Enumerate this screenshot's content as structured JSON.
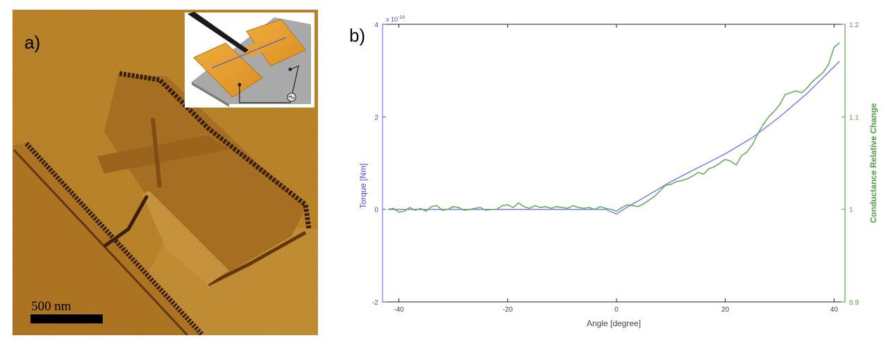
{
  "figure": {
    "panel_a": {
      "label": "a)",
      "scale_bar_label": "500 nm"
    },
    "panel_b": {
      "label": "b)"
    }
  },
  "colors": {
    "background": "#ffffff",
    "image_base": "#c78f2f",
    "image_dark": "#4a2a10",
    "torque_blue": "#7c7cf2",
    "conductance_green": "#5aaa4e",
    "axis_blue": "#4a4ad8",
    "axis_green": "#4fa043"
  },
  "chart_data": {
    "type": "line",
    "xlabel": "Angle [degree]",
    "ylabel_left": "Torque [Nm]",
    "ylabel_right": "Conductance Relative Change",
    "exponent_label": "x 10",
    "exponent_power": "-14",
    "xlim": [
      -43,
      42
    ],
    "ylim_left": [
      -2,
      4
    ],
    "ylim_right": [
      0.9,
      1.2
    ],
    "x_ticks": [
      -40,
      -20,
      0,
      20,
      40
    ],
    "x_tick_labels": [
      "-40",
      "-20",
      "0",
      "20",
      "40"
    ],
    "y_ticks_left": [
      -2,
      0,
      2,
      4
    ],
    "y_tick_labels_left": [
      "-2",
      "0",
      "2",
      "4"
    ],
    "y_ticks_right": [
      0.9,
      1,
      1.1,
      1.2
    ],
    "y_tick_labels_right": [
      "0.9",
      "1",
      "1.1",
      "1.2"
    ],
    "grid": false,
    "series": [
      {
        "axis": "left",
        "color": "#7c7cf2",
        "x": [
          -42,
          -30,
          -20,
          -10,
          -2,
          0,
          2,
          5,
          10,
          15,
          20,
          25,
          30,
          35,
          41
        ],
        "y": [
          0.0,
          0.0,
          0.0,
          0.0,
          0.0,
          -0.1,
          0.05,
          0.25,
          0.6,
          0.9,
          1.2,
          1.55,
          2.0,
          2.5,
          3.2
        ]
      },
      {
        "axis": "right",
        "color": "#5aaa4e",
        "x": [
          -42,
          -41,
          -40,
          -39,
          -38,
          -37,
          -36,
          -35,
          -34,
          -33,
          -32,
          -31,
          -30,
          -29,
          -28,
          -27,
          -26,
          -25,
          -24,
          -23,
          -22,
          -21,
          -20,
          -19,
          -18,
          -17,
          -16,
          -15,
          -14,
          -13,
          -12,
          -11,
          -10,
          -9,
          -8,
          -7,
          -6,
          -5,
          -4,
          -3,
          -2,
          -1,
          0,
          1,
          2,
          3,
          4,
          5,
          6,
          7,
          8,
          9,
          10,
          11,
          12,
          13,
          14,
          15,
          16,
          17,
          18,
          19,
          20,
          21,
          22,
          23,
          24,
          25,
          26,
          27,
          28,
          29,
          30,
          31,
          32,
          33,
          34,
          35,
          36,
          37,
          38,
          39,
          40,
          41
        ],
        "y": [
          1.0,
          1.001,
          0.997,
          0.998,
          1.002,
          0.999,
          1.001,
          0.998,
          1.003,
          1.004,
          0.999,
          1.0,
          1.003,
          1.002,
          0.999,
          1.0,
          1.001,
          1.002,
          0.999,
          1.0,
          1.0,
          1.004,
          1.005,
          1.002,
          1.007,
          1.003,
          1.001,
          1.004,
          1.002,
          1.003,
          1.001,
          1.003,
          1.002,
          1.001,
          1.004,
          1.002,
          1.001,
          1.002,
          1.0,
          1.003,
          1.001,
          1.0,
          0.998,
          1.002,
          1.005,
          1.004,
          1.003,
          1.006,
          1.01,
          1.014,
          1.02,
          1.026,
          1.027,
          1.03,
          1.031,
          1.033,
          1.036,
          1.04,
          1.038,
          1.044,
          1.046,
          1.05,
          1.054,
          1.052,
          1.048,
          1.058,
          1.062,
          1.07,
          1.082,
          1.092,
          1.1,
          1.106,
          1.113,
          1.124,
          1.126,
          1.128,
          1.126,
          1.131,
          1.138,
          1.143,
          1.148,
          1.157,
          1.175,
          1.18
        ]
      }
    ]
  }
}
